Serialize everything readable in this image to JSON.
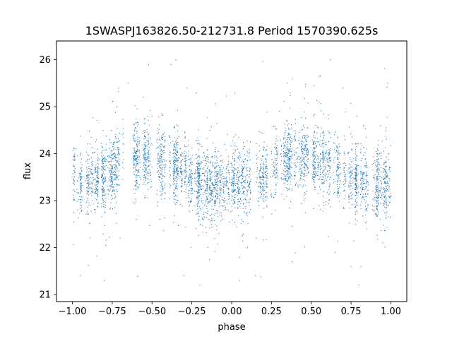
{
  "chart_data": {
    "type": "scatter",
    "title": "1SWASPJ163826.50-212731.8 Period 1570390.625s",
    "xlabel": "phase",
    "ylabel": "flux",
    "xlim": [
      -1.1,
      1.1
    ],
    "ylim": [
      20.85,
      26.4
    ],
    "xticks": [
      -1.0,
      -0.75,
      -0.5,
      -0.25,
      0.0,
      0.25,
      0.5,
      0.75,
      1.0
    ],
    "xtick_labels": [
      "−1.00",
      "−0.75",
      "−0.50",
      "−0.25",
      "0.00",
      "0.25",
      "0.50",
      "0.75",
      "1.00"
    ],
    "yticks": [
      21,
      22,
      23,
      24,
      25,
      26
    ],
    "ytick_labels": [
      "21",
      "22",
      "23",
      "24",
      "25",
      "26"
    ],
    "grid": false,
    "marker_color": "#1f77b4",
    "series": [
      {
        "phase_trend": [
          [
            -1.0,
            23.4
          ],
          [
            -0.9,
            23.35
          ],
          [
            -0.75,
            23.6
          ],
          [
            -0.7,
            23.85
          ],
          [
            -0.6,
            23.9
          ],
          [
            -0.5,
            23.9
          ],
          [
            -0.4,
            23.8
          ],
          [
            -0.3,
            23.6
          ],
          [
            -0.2,
            23.4
          ],
          [
            -0.1,
            23.3
          ],
          [
            0.0,
            23.4
          ],
          [
            0.1,
            23.35
          ],
          [
            0.25,
            23.6
          ],
          [
            0.3,
            23.85
          ],
          [
            0.4,
            23.9
          ],
          [
            0.5,
            23.9
          ],
          [
            0.6,
            23.8
          ],
          [
            0.7,
            23.6
          ],
          [
            0.8,
            23.4
          ],
          [
            0.9,
            23.3
          ],
          [
            1.0,
            23.4
          ]
        ],
        "sample_points": [
          [
            -1.0,
            23.5
          ],
          [
            -0.98,
            24.1
          ],
          [
            -0.95,
            21.4
          ],
          [
            -0.9,
            22.9
          ],
          [
            -0.85,
            24.3
          ],
          [
            -0.8,
            21.3
          ],
          [
            -0.72,
            25.0
          ],
          [
            -0.7,
            22.2
          ],
          [
            -0.65,
            25.5
          ],
          [
            -0.55,
            24.1
          ],
          [
            -0.5,
            24.8
          ],
          [
            -0.45,
            22.6
          ],
          [
            -0.38,
            25.9
          ],
          [
            -0.35,
            26.0
          ],
          [
            -0.3,
            21.4
          ],
          [
            -0.28,
            25.4
          ],
          [
            -0.2,
            21.2
          ],
          [
            -0.15,
            22.0
          ],
          [
            -0.08,
            22.3
          ],
          [
            0.0,
            23.2
          ],
          [
            0.05,
            21.3
          ],
          [
            0.1,
            22.0
          ],
          [
            0.15,
            21.4
          ],
          [
            0.3,
            24.9
          ],
          [
            0.35,
            25.5
          ],
          [
            0.38,
            21.7
          ],
          [
            0.45,
            24.6
          ],
          [
            0.55,
            25.1
          ],
          [
            0.62,
            26.0
          ],
          [
            0.65,
            21.9
          ],
          [
            0.7,
            25.4
          ],
          [
            0.75,
            21.6
          ],
          [
            0.8,
            21.2
          ],
          [
            0.85,
            22.4
          ],
          [
            0.9,
            22.7
          ],
          [
            0.95,
            22.1
          ],
          [
            1.0,
            23.1
          ]
        ]
      }
    ]
  }
}
